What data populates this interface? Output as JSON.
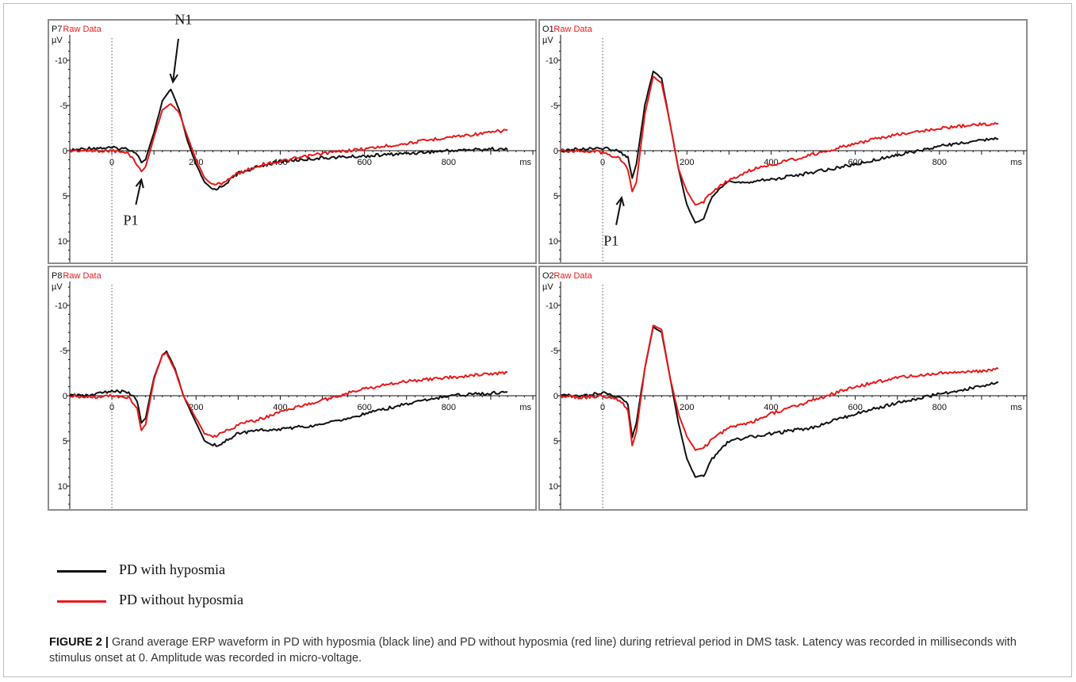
{
  "figure": {
    "caption_label": "FIGURE 2 |",
    "caption_text": "Grand average ERP waveform in PD with hyposmia (black line) and PD without hyposmia (red line) during retrieval period in DMS task. Latency was recorded in milliseconds with stimulus onset at 0. Amplitude was recorded in micro-voltage."
  },
  "legend": [
    {
      "label": "PD with hyposmia",
      "color": "#111111"
    },
    {
      "label": "PD without hyposmia",
      "color": "#e8191b"
    }
  ],
  "chart_data": [
    {
      "type": "line",
      "channel": "P7",
      "title_suffix": "Raw Data",
      "ylabel": "µV",
      "xunit": "ms",
      "xlim": [
        -100,
        1000
      ],
      "ylim": [
        -12,
        12.5
      ],
      "y_inverted": true,
      "xticks": [
        0,
        200,
        400,
        600,
        800
      ],
      "yticks": [
        -10,
        -5,
        0,
        5,
        10
      ],
      "series": [
        {
          "name": "PD with hyposmia",
          "color": "#111111",
          "points": [
            [
              -100,
              0
            ],
            [
              -50,
              -0.3
            ],
            [
              0,
              -0.3
            ],
            [
              40,
              -0.2
            ],
            [
              60,
              0.3
            ],
            [
              70,
              1.3
            ],
            [
              80,
              1
            ],
            [
              100,
              -2
            ],
            [
              120,
              -5.5
            ],
            [
              140,
              -6.8
            ],
            [
              160,
              -4.5
            ],
            [
              180,
              -1
            ],
            [
              200,
              1.5
            ],
            [
              220,
              3.5
            ],
            [
              240,
              4.3
            ],
            [
              260,
              4
            ],
            [
              300,
              2.5
            ],
            [
              360,
              1.6
            ],
            [
              400,
              1.2
            ],
            [
              500,
              0.8
            ],
            [
              600,
              0.6
            ],
            [
              700,
              0.3
            ],
            [
              800,
              0
            ],
            [
              900,
              -0.2
            ],
            [
              940,
              -0.1
            ]
          ]
        },
        {
          "name": "PD without hyposmia",
          "color": "#e8191b",
          "points": [
            [
              -100,
              0
            ],
            [
              -50,
              0
            ],
            [
              0,
              0
            ],
            [
              40,
              0.3
            ],
            [
              60,
              1.5
            ],
            [
              70,
              2.3
            ],
            [
              80,
              1.8
            ],
            [
              100,
              -1.5
            ],
            [
              120,
              -4.5
            ],
            [
              140,
              -5.2
            ],
            [
              160,
              -4.2
            ],
            [
              180,
              -1.5
            ],
            [
              200,
              1
            ],
            [
              220,
              3
            ],
            [
              240,
              3.8
            ],
            [
              260,
              3.6
            ],
            [
              300,
              2.5
            ],
            [
              360,
              1.5
            ],
            [
              400,
              1.2
            ],
            [
              500,
              0.3
            ],
            [
              600,
              -0.2
            ],
            [
              700,
              -0.8
            ],
            [
              800,
              -1.5
            ],
            [
              900,
              -2
            ],
            [
              940,
              -2.3
            ]
          ]
        }
      ],
      "annotations": [
        {
          "text": "N1",
          "x": 170,
          "y": -14,
          "arrow_to": [
            145,
            -7.6
          ]
        },
        {
          "text": "P1",
          "x": 45,
          "y": 8.2,
          "arrow_to": [
            70,
            3.2
          ]
        }
      ]
    },
    {
      "type": "line",
      "channel": "O1",
      "title_suffix": "Raw Data",
      "ylabel": "µV",
      "xunit": "ms",
      "xlim": [
        -100,
        1000
      ],
      "ylim": [
        -12,
        12.5
      ],
      "y_inverted": true,
      "xticks": [
        0,
        200,
        400,
        600,
        800
      ],
      "yticks": [
        -10,
        -5,
        0,
        5,
        10
      ],
      "series": [
        {
          "name": "PD with hyposmia",
          "color": "#111111",
          "points": [
            [
              -100,
              0
            ],
            [
              -50,
              -0.2
            ],
            [
              0,
              -0.3
            ],
            [
              40,
              0
            ],
            [
              60,
              0.8
            ],
            [
              70,
              3
            ],
            [
              80,
              1.5
            ],
            [
              100,
              -5
            ],
            [
              120,
              -8.8
            ],
            [
              140,
              -8
            ],
            [
              160,
              -3
            ],
            [
              180,
              2
            ],
            [
              200,
              6
            ],
            [
              220,
              8
            ],
            [
              240,
              7.5
            ],
            [
              260,
              5
            ],
            [
              300,
              3.5
            ],
            [
              360,
              3.4
            ],
            [
              400,
              3.2
            ],
            [
              500,
              2.4
            ],
            [
              600,
              1.5
            ],
            [
              700,
              0.5
            ],
            [
              800,
              -0.5
            ],
            [
              900,
              -1.2
            ],
            [
              940,
              -1.3
            ]
          ]
        },
        {
          "name": "PD without hyposmia",
          "color": "#e8191b",
          "points": [
            [
              -100,
              0
            ],
            [
              -50,
              0
            ],
            [
              0,
              0.2
            ],
            [
              40,
              0.8
            ],
            [
              60,
              2
            ],
            [
              70,
              4.5
            ],
            [
              80,
              3.5
            ],
            [
              100,
              -4
            ],
            [
              120,
              -8.2
            ],
            [
              140,
              -7.5
            ],
            [
              160,
              -3
            ],
            [
              180,
              2
            ],
            [
              200,
              4.5
            ],
            [
              220,
              6
            ],
            [
              240,
              5.6
            ],
            [
              260,
              4.6
            ],
            [
              300,
              3.2
            ],
            [
              360,
              2
            ],
            [
              400,
              1.6
            ],
            [
              500,
              0.4
            ],
            [
              600,
              -0.8
            ],
            [
              700,
              -1.8
            ],
            [
              800,
              -2.5
            ],
            [
              900,
              -2.9
            ],
            [
              940,
              -3
            ]
          ]
        }
      ],
      "annotations": [
        {
          "text": "P1",
          "x": 20,
          "y": 10.5,
          "arrow_to": [
            45,
            5.2
          ]
        }
      ]
    },
    {
      "type": "line",
      "channel": "P8",
      "title_suffix": "Raw Data",
      "ylabel": "µV",
      "xunit": "ms",
      "xlim": [
        -100,
        1000
      ],
      "ylim": [
        -12,
        12.5
      ],
      "y_inverted": true,
      "xticks": [
        0,
        200,
        400,
        600,
        800
      ],
      "yticks": [
        -10,
        -5,
        0,
        5,
        10
      ],
      "series": [
        {
          "name": "PD with hyposmia",
          "color": "#111111",
          "points": [
            [
              -100,
              0
            ],
            [
              -50,
              0
            ],
            [
              0,
              -0.6
            ],
            [
              40,
              -0.3
            ],
            [
              60,
              0.5
            ],
            [
              70,
              3
            ],
            [
              80,
              2.5
            ],
            [
              100,
              -2
            ],
            [
              120,
              -4.5
            ],
            [
              130,
              -4.9
            ],
            [
              150,
              -3
            ],
            [
              170,
              0
            ],
            [
              200,
              3
            ],
            [
              220,
              5
            ],
            [
              240,
              5.5
            ],
            [
              260,
              5.3
            ],
            [
              300,
              4.2
            ],
            [
              360,
              3.8
            ],
            [
              400,
              3.7
            ],
            [
              500,
              3.2
            ],
            [
              600,
              2
            ],
            [
              700,
              0.9
            ],
            [
              800,
              0
            ],
            [
              900,
              -0.3
            ],
            [
              940,
              -0.4
            ]
          ]
        },
        {
          "name": "PD without hyposmia",
          "color": "#e8191b",
          "points": [
            [
              -100,
              0
            ],
            [
              -50,
              0.2
            ],
            [
              0,
              0
            ],
            [
              40,
              0.2
            ],
            [
              60,
              1.5
            ],
            [
              70,
              3.8
            ],
            [
              80,
              3.2
            ],
            [
              100,
              -1.8
            ],
            [
              120,
              -4.5
            ],
            [
              130,
              -4.7
            ],
            [
              150,
              -2.8
            ],
            [
              170,
              0
            ],
            [
              200,
              2.5
            ],
            [
              220,
              4.2
            ],
            [
              240,
              4.5
            ],
            [
              260,
              4.2
            ],
            [
              300,
              3.2
            ],
            [
              360,
              2.5
            ],
            [
              400,
              1.8
            ],
            [
              500,
              0.5
            ],
            [
              600,
              -0.8
            ],
            [
              700,
              -1.6
            ],
            [
              800,
              -2
            ],
            [
              900,
              -2.4
            ],
            [
              940,
              -2.6
            ]
          ]
        }
      ]
    },
    {
      "type": "line",
      "channel": "O2",
      "title_suffix": "Raw Data",
      "ylabel": "µV",
      "xunit": "ms",
      "xlim": [
        -100,
        1000
      ],
      "ylim": [
        -12,
        12.5
      ],
      "y_inverted": true,
      "xticks": [
        0,
        200,
        400,
        600,
        800
      ],
      "yticks": [
        -10,
        -5,
        0,
        5,
        10
      ],
      "series": [
        {
          "name": "PD with hyposmia",
          "color": "#111111",
          "points": [
            [
              -100,
              0
            ],
            [
              -50,
              0
            ],
            [
              0,
              -0.3
            ],
            [
              40,
              0.2
            ],
            [
              60,
              1
            ],
            [
              70,
              4.6
            ],
            [
              80,
              3
            ],
            [
              100,
              -3
            ],
            [
              120,
              -7.6
            ],
            [
              140,
              -7
            ],
            [
              160,
              -2
            ],
            [
              180,
              3
            ],
            [
              200,
              7
            ],
            [
              220,
              9
            ],
            [
              240,
              8.8
            ],
            [
              260,
              7
            ],
            [
              300,
              5
            ],
            [
              360,
              4.5
            ],
            [
              400,
              4.2
            ],
            [
              500,
              3.5
            ],
            [
              600,
              2
            ],
            [
              700,
              0.8
            ],
            [
              800,
              -0.2
            ],
            [
              900,
              -1
            ],
            [
              940,
              -1.5
            ]
          ]
        },
        {
          "name": "PD without hyposmia",
          "color": "#e8191b",
          "points": [
            [
              -100,
              0
            ],
            [
              -50,
              0.2
            ],
            [
              0,
              0
            ],
            [
              40,
              0.5
            ],
            [
              60,
              1.5
            ],
            [
              70,
              5.5
            ],
            [
              80,
              4
            ],
            [
              100,
              -3
            ],
            [
              120,
              -7.8
            ],
            [
              140,
              -7.3
            ],
            [
              160,
              -2
            ],
            [
              180,
              2
            ],
            [
              200,
              4.5
            ],
            [
              220,
              6
            ],
            [
              240,
              5.8
            ],
            [
              260,
              4.8
            ],
            [
              300,
              3.5
            ],
            [
              360,
              2.8
            ],
            [
              400,
              2
            ],
            [
              500,
              0.5
            ],
            [
              600,
              -1
            ],
            [
              700,
              -2
            ],
            [
              800,
              -2.5
            ],
            [
              900,
              -2.7
            ],
            [
              940,
              -3
            ]
          ]
        }
      ]
    }
  ]
}
